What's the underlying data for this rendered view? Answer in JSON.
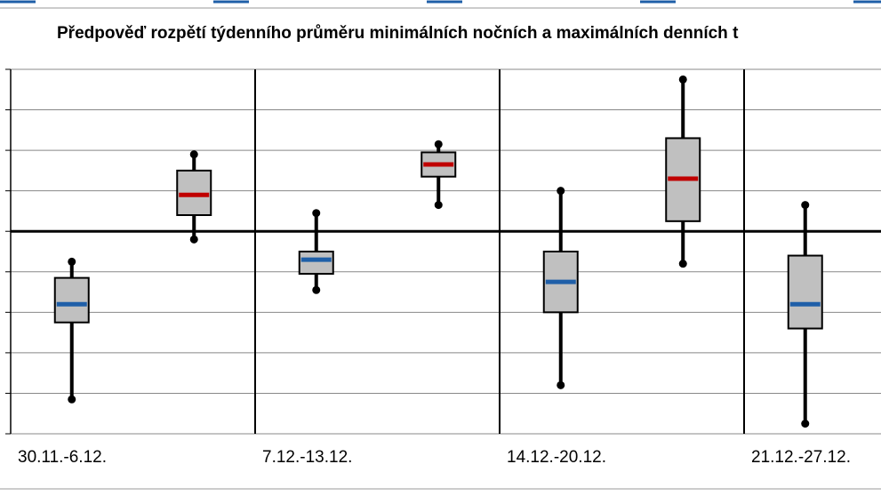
{
  "chart_data": {
    "type": "box",
    "title": "Předpověď rozpětí týdenního průměru minimálních nočních a maximálních denních t",
    "categories": [
      "30.11.-6.12.",
      "7.12.-13.12.",
      "14.12.-20.12.",
      "21.12.-27.12."
    ],
    "ylim": [
      -5,
      4
    ],
    "yticks": [
      -5,
      -4,
      -3,
      -2,
      -1,
      0,
      1,
      2,
      3,
      4
    ],
    "grid": true,
    "series": [
      {
        "color": "#1f5fa8",
        "low": [
          -4.15,
          -1.45,
          -3.8,
          -4.75
        ],
        "q1": [
          -2.25,
          -1.05,
          -2.0,
          -2.4
        ],
        "median": [
          -1.8,
          -0.7,
          -1.25,
          -1.8
        ],
        "q3": [
          -1.15,
          -0.5,
          -0.5,
          -0.6
        ],
        "high": [
          -0.75,
          0.45,
          1.0,
          0.65
        ]
      },
      {
        "color": "#c00000",
        "low": [
          -0.2,
          0.65,
          -0.8,
          null
        ],
        "q1": [
          0.4,
          1.35,
          0.25,
          null
        ],
        "median": [
          0.9,
          1.65,
          1.3,
          null
        ],
        "q3": [
          1.5,
          1.95,
          2.3,
          null
        ],
        "high": [
          1.9,
          2.15,
          3.75,
          null
        ]
      }
    ]
  }
}
